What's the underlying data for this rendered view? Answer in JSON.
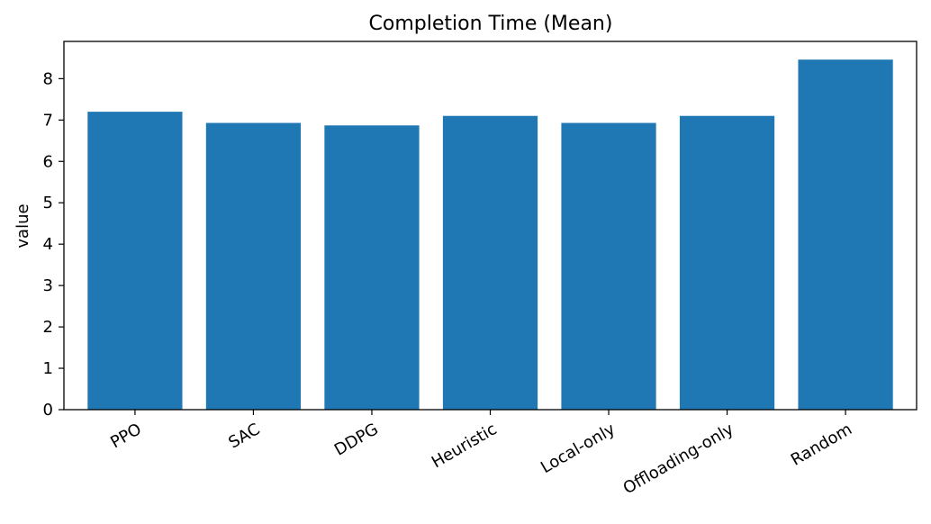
{
  "chart_data": {
    "type": "bar",
    "title": "Completion Time (Mean)",
    "xlabel": "",
    "ylabel": "value",
    "categories": [
      "PPO",
      "SAC",
      "DDPG",
      "Heuristic",
      "Local-only",
      "Offloading-only",
      "Random"
    ],
    "values": [
      7.2,
      6.93,
      6.87,
      7.1,
      6.93,
      7.1,
      8.46
    ],
    "ylim": [
      0,
      8.9
    ],
    "yticks": [
      "0",
      "1",
      "2",
      "3",
      "4",
      "5",
      "6",
      "7",
      "8"
    ],
    "bar_color": "#1f77b4",
    "grid": false,
    "legend": "none"
  }
}
